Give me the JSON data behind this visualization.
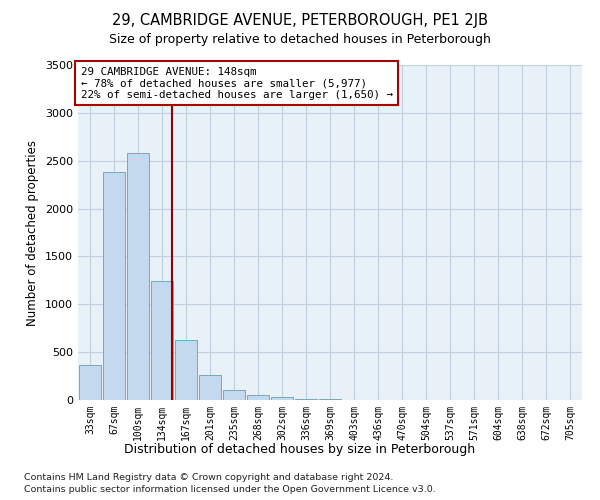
{
  "title1": "29, CAMBRIDGE AVENUE, PETERBOROUGH, PE1 2JB",
  "title2": "Size of property relative to detached houses in Peterborough",
  "xlabel": "Distribution of detached houses by size in Peterborough",
  "ylabel": "Number of detached properties",
  "footnote1": "Contains HM Land Registry data © Crown copyright and database right 2024.",
  "footnote2": "Contains public sector information licensed under the Open Government Licence v3.0.",
  "categories": [
    "33sqm",
    "67sqm",
    "100sqm",
    "134sqm",
    "167sqm",
    "201sqm",
    "235sqm",
    "268sqm",
    "302sqm",
    "336sqm",
    "369sqm",
    "403sqm",
    "436sqm",
    "470sqm",
    "504sqm",
    "537sqm",
    "571sqm",
    "604sqm",
    "638sqm",
    "672sqm",
    "705sqm"
  ],
  "values": [
    370,
    2380,
    2580,
    1240,
    630,
    260,
    100,
    50,
    30,
    15,
    8,
    5,
    3,
    2,
    2,
    2,
    1,
    1,
    1,
    1,
    3
  ],
  "bar_color": "#c5d9ee",
  "bar_edge_color": "#6baad0",
  "grid_color": "#c0d0e0",
  "background_color": "#e8f0f8",
  "annotation_text": "29 CAMBRIDGE AVENUE: 148sqm\n← 78% of detached houses are smaller (5,977)\n22% of semi-detached houses are larger (1,650) →",
  "annotation_box_facecolor": "#ffffff",
  "annotation_border_color": "#aa0000",
  "vline_color": "#990000",
  "ylim": [
    0,
    3500
  ],
  "yticks": [
    0,
    500,
    1000,
    1500,
    2000,
    2500,
    3000,
    3500
  ]
}
